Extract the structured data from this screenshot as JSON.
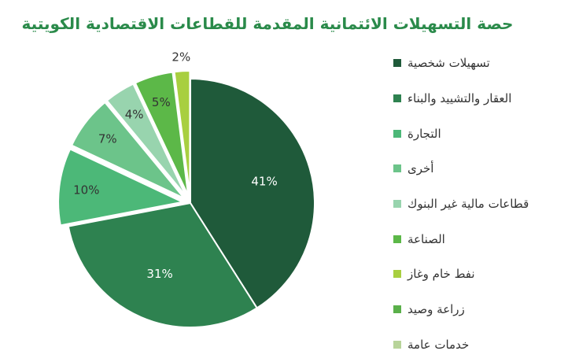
{
  "chart_data": {
    "type": "pie",
    "title": "حصة التسهيلات الائتمانية المقدمة للقطاعات الاقتصادية الكويتية",
    "slices": [
      {
        "label": "تسهيلات شخصية",
        "value": 41,
        "display": "41%",
        "color": "#1f5a3a",
        "text_color": "#ffffff",
        "exploded": false
      },
      {
        "label": "العقار والتشييد والبناء",
        "value": 31,
        "display": "31%",
        "color": "#2e8250",
        "text_color": "#ffffff",
        "exploded": false
      },
      {
        "label": "التجارة",
        "value": 10,
        "display": "10%",
        "color": "#4cb878",
        "text_color": "#333333",
        "exploded": true
      },
      {
        "label": "أخرى",
        "value": 7,
        "display": "7%",
        "color": "#6cc48a",
        "text_color": "#333333",
        "exploded": true
      },
      {
        "label": "قطاعات مالية غير البنوك",
        "value": 4,
        "display": "4%",
        "color": "#98d4ae",
        "text_color": "#333333",
        "exploded": true
      },
      {
        "label": "الصناعة",
        "value": 5,
        "display": "5%",
        "color": "#5cb848",
        "text_color": "#333333",
        "exploded": true
      },
      {
        "label": "نفط خام وغاز",
        "value": 2,
        "display": "2%",
        "color": "#a8cf40",
        "text_color": "#333333",
        "exploded": true
      },
      {
        "label": "زراعة وصيد",
        "value": 0,
        "display": "",
        "color": "#5ab04a",
        "text_color": "#333333",
        "exploded": true
      },
      {
        "label": "خدمات عامة",
        "value": 0,
        "display": "",
        "color": "#b8d49a",
        "text_color": "#333333",
        "exploded": true
      }
    ],
    "legend_position": "right"
  }
}
